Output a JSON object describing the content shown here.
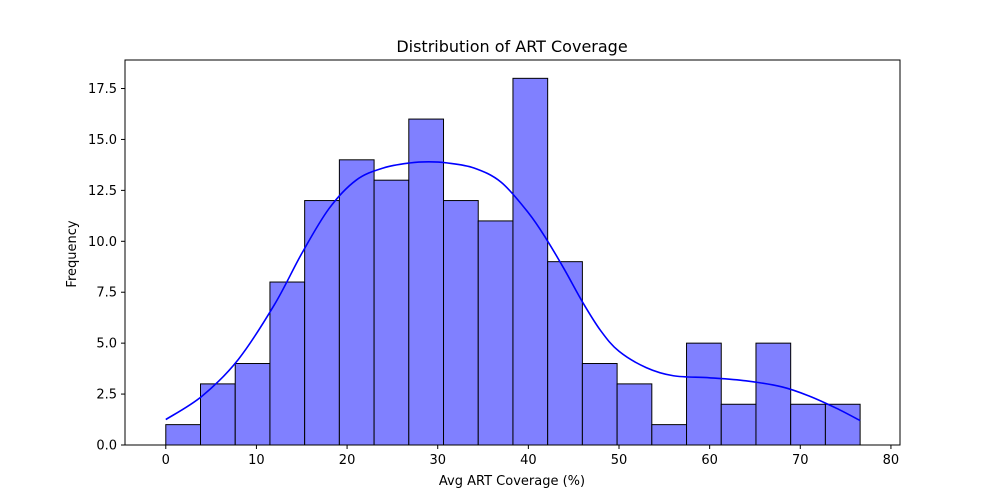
{
  "chart_data": {
    "type": "bar",
    "title": "Distribution of ART Coverage",
    "xlabel": "Avg ART Coverage (%)",
    "ylabel": "Frequency",
    "xlim": [
      -4.5,
      81
    ],
    "ylim": [
      0,
      18.9
    ],
    "xticks": [
      0,
      10,
      20,
      30,
      40,
      50,
      60,
      70,
      80
    ],
    "yticks": [
      0.0,
      2.5,
      5.0,
      7.5,
      10.0,
      12.5,
      15.0,
      17.5
    ],
    "ytick_labels": [
      "0.0",
      "2.5",
      "5.0",
      "7.5",
      "10.0",
      "12.5",
      "15.0",
      "17.5"
    ],
    "bin_edges": [
      0,
      3.83,
      7.66,
      11.49,
      15.32,
      19.15,
      22.98,
      26.81,
      30.64,
      34.47,
      38.3,
      42.13,
      45.96,
      49.79,
      53.62,
      57.45,
      61.28,
      65.11,
      68.94,
      72.77,
      76.6
    ],
    "values": [
      1,
      3,
      4,
      8,
      12,
      14,
      13,
      16,
      12,
      11,
      18,
      9,
      4,
      3,
      1,
      5,
      2,
      5,
      2,
      2
    ],
    "bar_color": "#8080ff",
    "bar_edge_color": "#000000",
    "kde": {
      "color": "#0000ff",
      "points": [
        [
          0,
          1.25
        ],
        [
          4,
          2.4
        ],
        [
          8,
          4.2
        ],
        [
          12,
          6.9
        ],
        [
          15,
          9.4
        ],
        [
          18,
          11.6
        ],
        [
          21,
          13.0
        ],
        [
          24,
          13.6
        ],
        [
          27,
          13.85
        ],
        [
          29,
          13.9
        ],
        [
          31,
          13.85
        ],
        [
          34,
          13.6
        ],
        [
          37,
          12.9
        ],
        [
          40,
          11.4
        ],
        [
          42,
          10.1
        ],
        [
          44,
          8.6
        ],
        [
          46,
          7.0
        ],
        [
          48,
          5.6
        ],
        [
          50,
          4.6
        ],
        [
          53,
          3.8
        ],
        [
          56,
          3.4
        ],
        [
          60,
          3.3
        ],
        [
          64,
          3.15
        ],
        [
          68,
          2.85
        ],
        [
          71,
          2.4
        ],
        [
          74,
          1.8
        ],
        [
          76.6,
          1.2
        ]
      ]
    },
    "grid": false,
    "legend": "none"
  }
}
